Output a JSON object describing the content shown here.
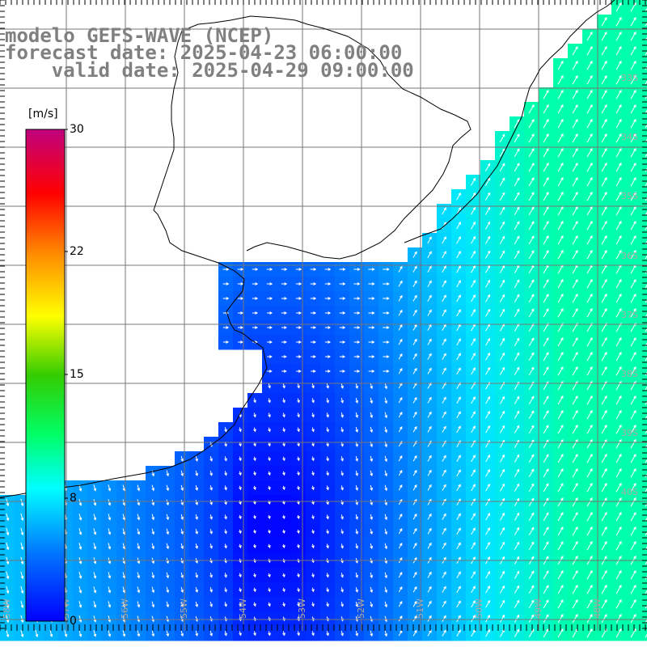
{
  "title": {
    "line1": "modelo GEFS-WAVE (NCEP)",
    "line2": "forecast date: 2025-04-23 06:00:00",
    "line3": "    valid date: 2025-04-29 09:00:00"
  },
  "colorbar": {
    "units": "[m/s]",
    "ticks": [
      "30",
      "22",
      "15",
      "8",
      "0"
    ],
    "tick_values": [
      30,
      22,
      15,
      8,
      0
    ],
    "min": 0,
    "max": 30,
    "colors": [
      "#0000ff",
      "#00aaff",
      "#00ffff",
      "#00ff00",
      "#ffff00",
      "#ff9900",
      "#ff0000",
      "#d4006e",
      "#c0007f"
    ]
  },
  "map": {
    "region": "South Atlantic / Rio de la Plata",
    "lat_labels": [
      "33S",
      "34S",
      "35S",
      "36S",
      "37S",
      "38S",
      "39S",
      "40S"
    ],
    "lon_labels": [
      "58W",
      "57W",
      "56W",
      "55W",
      "54W",
      "53W",
      "52W",
      "51W",
      "50W",
      "49W",
      "48W"
    ],
    "land_color": "#ffffff",
    "grid_color": "#777777",
    "coast_color": "#000000"
  }
}
